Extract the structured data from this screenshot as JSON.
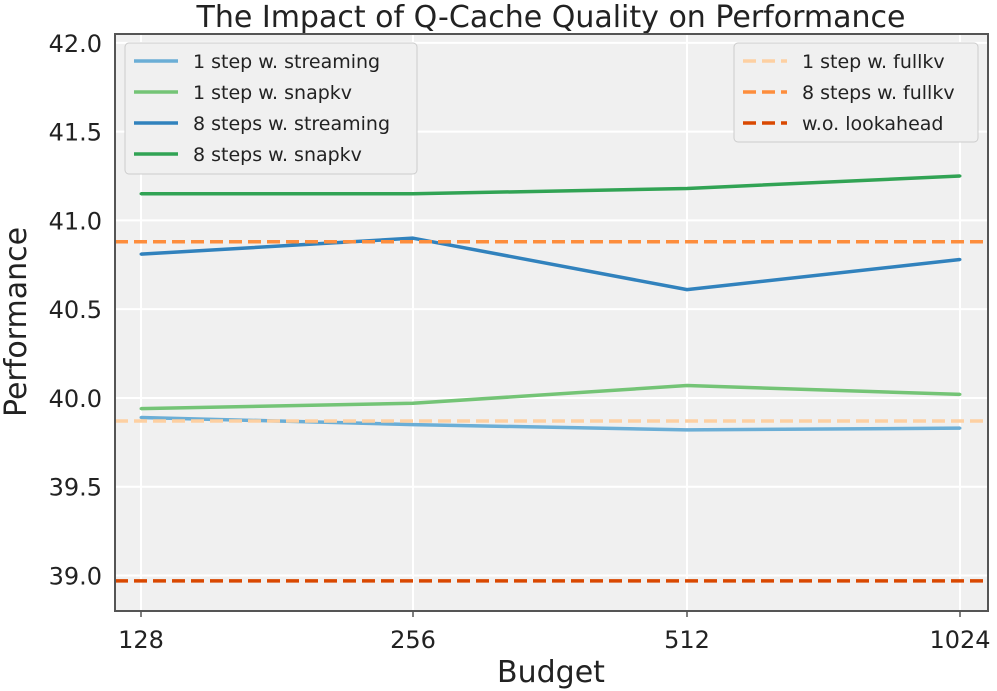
{
  "chart_data": {
    "type": "line",
    "title": "The Impact of Q-Cache Quality on Performance",
    "xlabel": "Budget",
    "ylabel": "Performance",
    "categories": [
      "128",
      "256",
      "512",
      "1024"
    ],
    "ylim": [
      38.8,
      42.05
    ],
    "yticks": [
      39.0,
      39.5,
      40.0,
      40.5,
      41.0,
      41.5,
      42.0
    ],
    "grid": true,
    "series": [
      {
        "name": "1 step w. streaming",
        "values": [
          39.89,
          39.85,
          39.82,
          39.83
        ],
        "color": "#6baed6",
        "style": "solid"
      },
      {
        "name": "1 step w. snapkv",
        "values": [
          39.94,
          39.97,
          40.07,
          40.02
        ],
        "color": "#74c476",
        "style": "solid"
      },
      {
        "name": "8 steps w. streaming",
        "values": [
          40.81,
          40.9,
          40.61,
          40.78
        ],
        "color": "#3182bd",
        "style": "solid"
      },
      {
        "name": "8 steps w. snapkv",
        "values": [
          41.15,
          41.15,
          41.18,
          41.25
        ],
        "color": "#31a354",
        "style": "solid"
      }
    ],
    "reference_lines": [
      {
        "name": "1 step w. fullkv",
        "value": 39.87,
        "color": "#fdd0a2",
        "style": "dashed"
      },
      {
        "name": "8 steps w. fullkv",
        "value": 40.88,
        "color": "#fd8d3c",
        "style": "dashed"
      },
      {
        "name": "w.o. lookahead",
        "value": 38.97,
        "color": "#d94801",
        "style": "dashed"
      }
    ],
    "legends": [
      {
        "placement": "top-left",
        "entries": [
          0,
          1,
          2,
          3
        ]
      },
      {
        "placement": "top-right",
        "entries": [
          0,
          1,
          2
        ]
      }
    ]
  }
}
